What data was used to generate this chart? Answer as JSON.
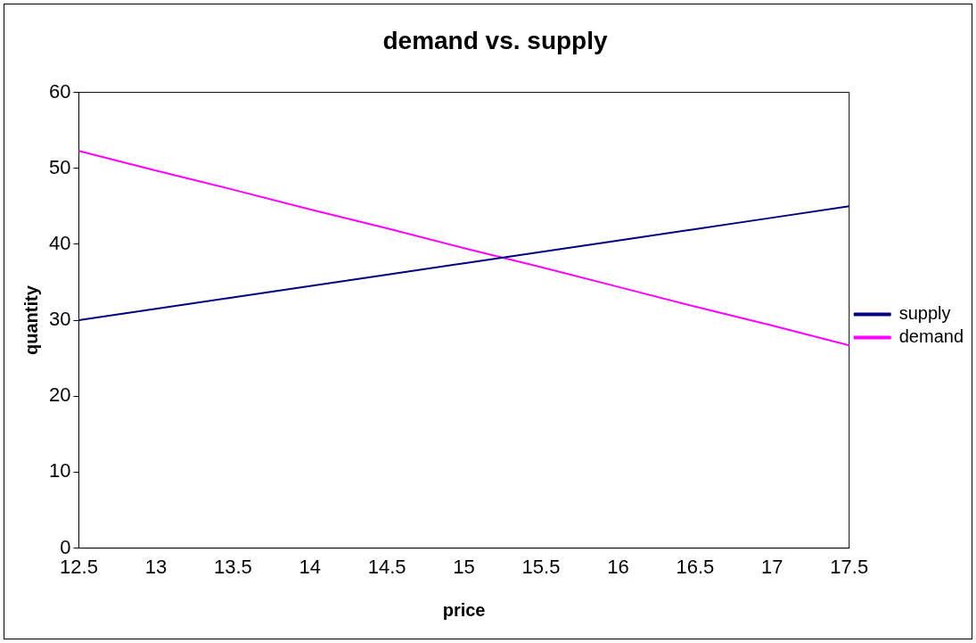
{
  "chart_data": {
    "type": "line",
    "title": "demand vs. supply",
    "xlabel": "price",
    "ylabel": "quantity",
    "categories": [
      "12.5",
      "13",
      "13.5",
      "14",
      "14.5",
      "15",
      "15.5",
      "16",
      "16.5",
      "17",
      "17.5"
    ],
    "series": [
      {
        "name": "supply",
        "color": "#000080",
        "values": [
          30,
          31.5,
          33,
          34.5,
          36,
          37.5,
          39,
          40.5,
          42,
          43.5,
          45
        ]
      },
      {
        "name": "demand",
        "color": "#ff00ff",
        "values": [
          52.3,
          49.7,
          47.2,
          44.6,
          42.1,
          39.5,
          37,
          34.4,
          31.8,
          29.3,
          26.7
        ]
      }
    ],
    "ylim": [
      0,
      60
    ],
    "yticks": [
      0,
      10,
      20,
      30,
      40,
      50,
      60
    ],
    "grid": false,
    "legend": "right",
    "marker": "none",
    "line_style": "solid"
  }
}
